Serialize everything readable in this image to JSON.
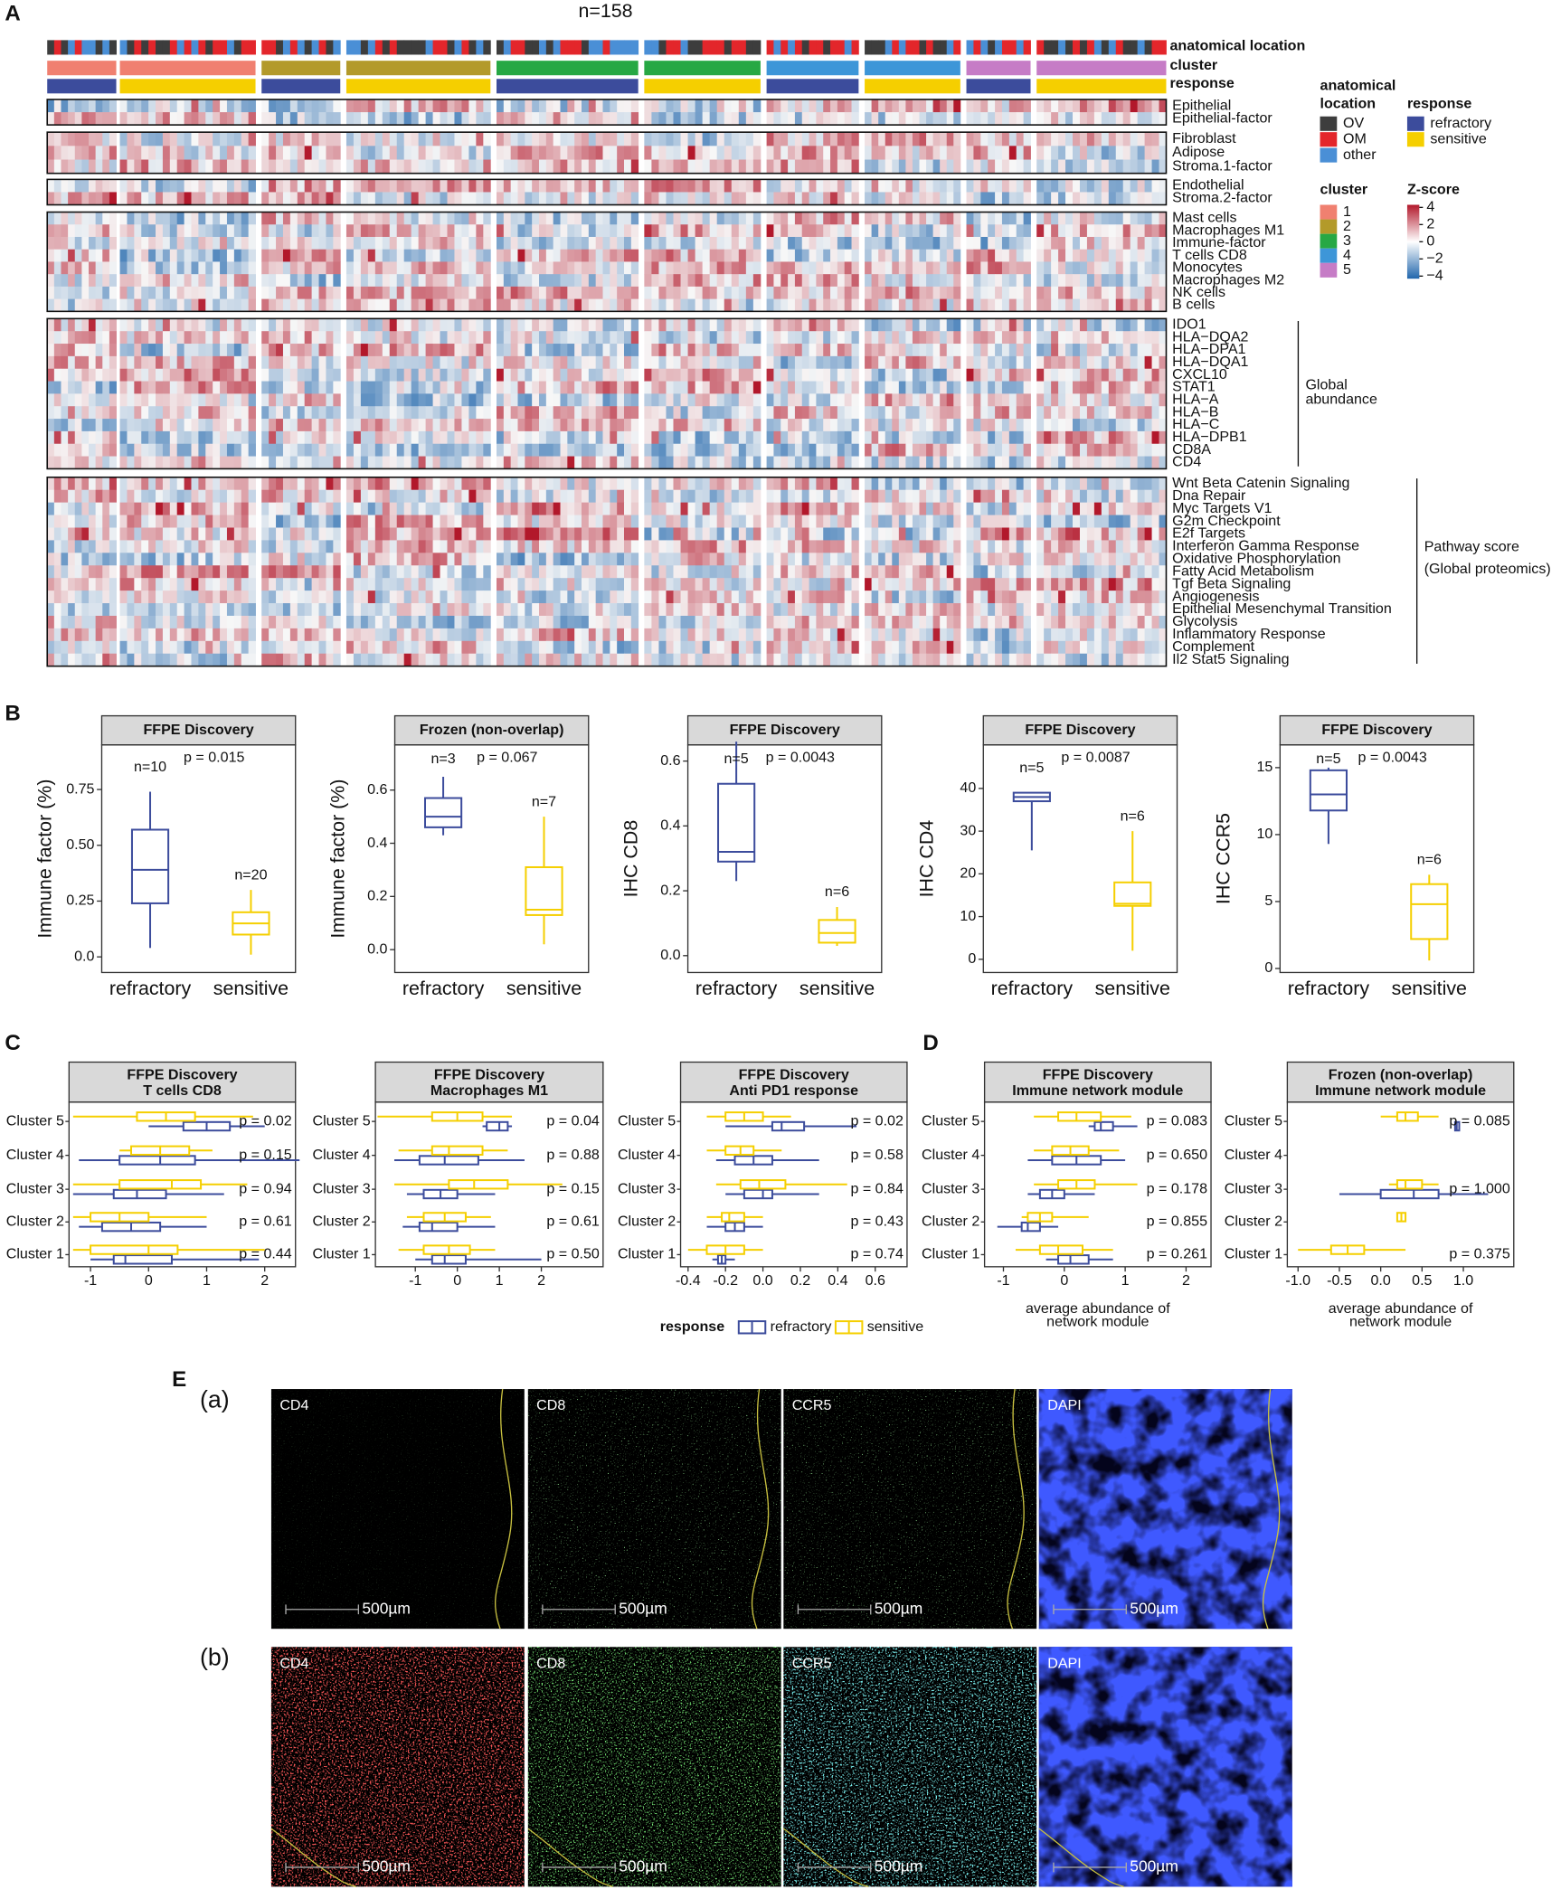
{
  "panel_labels": {
    "a": "A",
    "b": "B",
    "c": "C",
    "d": "D",
    "e": "E"
  },
  "response_colors": [
    "#3c4c9c",
    "#f5cf00"
  ],
  "heatmap": {
    "title": "n=158",
    "annotation_rows": [
      "anatomical location",
      "cluster",
      "response"
    ],
    "row_groups": [
      [
        "Epithelial",
        "Epithelial-factor"
      ],
      [
        "Fibroblast",
        "Adipose",
        "Stroma.1-factor"
      ],
      [
        "Endothelial",
        "Stroma.2-factor"
      ],
      [
        "Mast cells",
        "Macrophages M1",
        "Immune-factor",
        "T cells CD8",
        "Monocytes",
        "Macrophages M2",
        "NK cells",
        "B cells"
      ],
      [
        "IDO1",
        "HLA−DQA2",
        "HLA−DPA1",
        "HLA−DQA1",
        "CXCL10",
        "STAT1",
        "HLA−A",
        "HLA−B",
        "HLA−C",
        "HLA−DPB1",
        "CD8A",
        "CD4"
      ],
      [
        "Wnt Beta Catenin Signaling",
        "Dna Repair",
        "Myc Targets V1",
        "G2m Checkpoint",
        "E2f Targets",
        "Interferon Gamma Response",
        "Oxidative Phosphorylation",
        "Fatty Acid Metabolism",
        "Tgf Beta Signaling",
        "Angiogenesis",
        "Epithelial Mesenchymal Transition",
        "Glycolysis",
        "Inflammatory Response",
        "Complement",
        "Il2 Stat5 Signaling"
      ]
    ],
    "group_labels": [
      [
        "Global",
        "abundance"
      ],
      [
        "Pathway score",
        "(Global proteomics)"
      ]
    ]
  },
  "legend": {
    "anatomical_location": {
      "title": [
        "anatomical",
        "location"
      ],
      "items": [
        {
          "label": "OV",
          "color": "#3d3d3d"
        },
        {
          "label": "OM",
          "color": "#e3262b"
        },
        {
          "label": "other",
          "color": "#4a8fd6"
        }
      ]
    },
    "response": {
      "title": "response",
      "items": [
        {
          "label": "refractory",
          "color": "#3c4c9c"
        },
        {
          "label": "sensitive",
          "color": "#f5cf00"
        }
      ]
    },
    "cluster": {
      "title": "cluster",
      "items": [
        {
          "label": "1",
          "color": "#f08070"
        },
        {
          "label": "2",
          "color": "#b39a2a"
        },
        {
          "label": "3",
          "color": "#27a844"
        },
        {
          "label": "4",
          "color": "#3d96d8"
        },
        {
          "label": "5",
          "color": "#c67cc6"
        }
      ]
    },
    "zscore": {
      "title": "Z-score",
      "lim": [
        -4.3,
        4.3
      ],
      "ticks": [
        4,
        2,
        0,
        {
          "value": -2,
          "label": "−2"
        },
        {
          "value": -4,
          "label": "−4"
        }
      ]
    }
  },
  "panel_b": [
    {
      "strip": "FFPE Discovery",
      "ylabel": "Immune factor (%)",
      "p": "p = 0.015",
      "n": [
        "n=10",
        "n=20"
      ],
      "categories": [
        "refractory",
        "sensitive"
      ],
      "ylim": [
        -0.07,
        0.95
      ],
      "yticks": [
        {
          "value": 0,
          "label": "0.0"
        },
        {
          "value": 0.25,
          "label": "0.25"
        },
        {
          "value": 0.5,
          "label": "0.50"
        },
        {
          "value": 0.75,
          "label": "0.75"
        }
      ],
      "boxes": [
        [
          0.04,
          0.24,
          0.39,
          0.57,
          0.74
        ],
        [
          0.01,
          0.1,
          0.15,
          0.2,
          0.3
        ]
      ]
    },
    {
      "strip": "Frozen (non-overlap)",
      "ylabel": "Immune factor (%)",
      "p": "p = 0.067",
      "n": [
        "n=3",
        "n=7"
      ],
      "categories": [
        "refractory",
        "sensitive"
      ],
      "ylim": [
        -0.086,
        0.77
      ],
      "yticks": [
        {
          "value": 0,
          "label": "0.0"
        },
        0.2,
        0.4,
        0.6
      ],
      "boxes": [
        [
          0.43,
          0.46,
          0.5,
          0.57,
          0.65
        ],
        [
          0.02,
          0.13,
          0.15,
          0.31,
          0.5
        ]
      ]
    },
    {
      "strip": "FFPE Discovery",
      "ylabel": "IHC CD8",
      "p": "p = 0.0043",
      "n": [
        "n=5",
        "n=6"
      ],
      "categories": [
        "refractory",
        "sensitive"
      ],
      "ylim": [
        -0.052,
        0.65
      ],
      "yticks": [
        {
          "value": 0,
          "label": "0.0"
        },
        0.2,
        0.4,
        0.6
      ],
      "boxes": [
        [
          0.23,
          0.29,
          0.32,
          0.53,
          0.66
        ],
        [
          0.03,
          0.04,
          0.07,
          0.11,
          0.15
        ]
      ]
    },
    {
      "strip": "FFPE Discovery",
      "ylabel": "IHC CD4",
      "p": "p = 0.0087",
      "n": [
        "n=5",
        "n=6"
      ],
      "categories": [
        "refractory",
        "sensitive"
      ],
      "ylim": [
        -3.1,
        50.2
      ],
      "yticks": [
        0,
        10,
        20,
        30,
        40
      ],
      "boxes": [
        [
          25.5,
          37,
          38,
          39,
          39
        ],
        [
          2,
          12.5,
          13,
          18,
          30
        ]
      ]
    },
    {
      "strip": "FFPE Discovery",
      "ylabel": "IHC CCR5",
      "p": "p = 0.0043",
      "n": [
        "n=5",
        "n=6"
      ],
      "categories": [
        "refractory",
        "sensitive"
      ],
      "ylim": [
        -0.3,
        16.7
      ],
      "yticks": [
        0,
        5,
        10,
        15
      ],
      "boxes": [
        [
          9.3,
          11.8,
          13,
          14.8,
          15
        ],
        [
          0.6,
          2.2,
          4.8,
          6.3,
          7
        ]
      ]
    }
  ],
  "panel_cd": {
    "clusters": [
      "Cluster 5",
      "Cluster 4",
      "Cluster 3",
      "Cluster 2",
      "Cluster 1"
    ],
    "legend_title": "response",
    "legend_items": [
      "refractory",
      "sensitive"
    ],
    "plots": [
      {
        "strip": [
          "FFPE Discovery",
          "T cells CD8"
        ],
        "xlim": [
          -1.37,
          2.53
        ],
        "xticks": [
          -1,
          0,
          1,
          2
        ],
        "p": [
          "p = 0.02",
          "p = 0.15",
          "p = 0.94",
          "p = 0.61",
          "p = 0.44"
        ],
        "refractory": [
          [
            0,
            0.6,
            1,
            1.4,
            2.0
          ],
          [
            -1.2,
            -0.5,
            0.2,
            0.8,
            2.6
          ],
          [
            -1.3,
            -0.6,
            -0.2,
            0.3,
            1.3
          ],
          [
            -1.2,
            -0.8,
            -0.3,
            0.2,
            1.0
          ],
          [
            -1.0,
            -0.6,
            -0.4,
            0.4,
            1.9
          ]
        ],
        "sensitive": [
          [
            -1.3,
            -0.2,
            0.3,
            0.8,
            1.8
          ],
          [
            -0.5,
            -0.3,
            0.2,
            0.7,
            1.1
          ],
          [
            -1.3,
            -0.5,
            0.4,
            0.9,
            1.7
          ],
          [
            -1.3,
            -1.0,
            -0.5,
            0,
            1.0
          ],
          [
            -1.3,
            -1.0,
            0,
            0.5,
            2.0
          ]
        ]
      },
      {
        "strip": [
          "FFPE Discovery",
          "Macrophages M1"
        ],
        "xlim": [
          -1.95,
          3.47
        ],
        "xticks": [
          -1,
          0,
          1,
          2
        ],
        "p": [
          "p = 0.04",
          "p = 0.88",
          "p = 0.15",
          "p = 0.61",
          "p = 0.50"
        ],
        "refractory": [
          [
            0.6,
            0.7,
            1.0,
            1.2,
            1.3
          ],
          [
            -1.5,
            -0.9,
            -0.3,
            0.5,
            1.6
          ],
          [
            -1.2,
            -0.8,
            -0.4,
            0,
            0.9
          ],
          [
            -1.3,
            -0.9,
            -0.6,
            0,
            0.9
          ],
          [
            -1,
            -0.6,
            -0.3,
            0.2,
            2.0
          ]
        ],
        "sensitive": [
          [
            -1.9,
            -0.6,
            0,
            0.6,
            1.3
          ],
          [
            -1.4,
            -0.6,
            -0.2,
            0.6,
            1.2
          ],
          [
            -1.5,
            -0.2,
            0.4,
            1.2,
            2.5
          ],
          [
            -1.2,
            -0.8,
            -0.3,
            0.2,
            0.8
          ],
          [
            -1.4,
            -0.8,
            -0.2,
            0.3,
            0.9
          ]
        ]
      },
      {
        "strip": [
          "FFPE Discovery",
          "Anti PD1 response"
        ],
        "xlim": [
          -0.44,
          0.77
        ],
        "xticks": [
          -0.4,
          -0.2,
          {
            "value": 0,
            "label": "0.0"
          },
          0.2,
          0.4,
          0.6
        ],
        "p": [
          "p = 0.02",
          "p = 0.58",
          "p = 0.84",
          "p = 0.43",
          "p = 0.74"
        ],
        "refractory": [
          [
            -0.2,
            0.05,
            0.1,
            0.22,
            0.5
          ],
          [
            -0.25,
            -0.15,
            -0.05,
            0.05,
            0.3
          ],
          [
            -0.2,
            -0.1,
            0,
            0.05,
            0.3
          ],
          [
            -0.3,
            -0.2,
            -0.15,
            -0.1,
            0
          ],
          [
            -0.27,
            -0.24,
            -0.22,
            -0.2,
            -0.15
          ]
        ],
        "sensitive": [
          [
            -0.3,
            -0.2,
            -0.1,
            0,
            0.15
          ],
          [
            -0.3,
            -0.2,
            -0.12,
            -0.05,
            0.1
          ],
          [
            -0.25,
            -0.12,
            -0.02,
            0.12,
            0.45
          ],
          [
            -0.3,
            -0.22,
            -0.18,
            -0.1,
            0
          ],
          [
            -0.4,
            -0.3,
            -0.2,
            -0.1,
            0
          ]
        ]
      },
      {
        "strip": [
          "FFPE Discovery",
          "Immune network module"
        ],
        "xlabel": [
          "average abundance of",
          "network module"
        ],
        "xlim": [
          -1.31,
          2.41
        ],
        "xticks": [
          -1,
          0,
          1,
          2
        ],
        "p": [
          "p = 0.083",
          "p = 0.650",
          "p = 0.178",
          "p = 0.855",
          "p = 0.261"
        ],
        "refractory": [
          [
            0.4,
            0.5,
            0.6,
            0.8,
            1.2
          ],
          [
            -0.6,
            -0.2,
            0.2,
            0.6,
            1.0
          ],
          [
            -0.6,
            -0.4,
            -0.2,
            0,
            0.5
          ],
          [
            -1.1,
            -0.7,
            -0.6,
            -0.4,
            -0.1
          ],
          [
            -0.3,
            -0.1,
            0.1,
            0.4,
            0.8
          ]
        ],
        "sensitive": [
          [
            -0.5,
            -0.1,
            0.2,
            0.6,
            1.1
          ],
          [
            -0.5,
            -0.2,
            0.1,
            0.4,
            0.9
          ],
          [
            -0.5,
            -0.1,
            0.2,
            0.5,
            1.2
          ],
          [
            -0.7,
            -0.6,
            -0.4,
            -0.2,
            0.4
          ],
          [
            -0.8,
            -0.4,
            -0.1,
            0.3,
            0.8
          ]
        ]
      },
      {
        "strip": [
          "Frozen (non-overlap)",
          "Immune network module"
        ],
        "xlabel": [
          "average abundance of",
          "network module"
        ],
        "xlim": [
          -1.13,
          1.61
        ],
        "xticks": [
          {
            "value": -1,
            "label": "-1.0"
          },
          -0.5,
          {
            "value": 0,
            "label": "0.0"
          },
          0.5,
          {
            "value": 1,
            "label": "1.0"
          }
        ],
        "p": [
          "p = 0.085",
          null,
          "p = 1.000",
          null,
          "p = 0.375"
        ],
        "refractory": [
          [
            0.9,
            0.9,
            0.92,
            0.95,
            0.95
          ],
          null,
          [
            -0.5,
            0,
            0.4,
            0.7,
            1.3
          ],
          null,
          null
        ],
        "sensitive": [
          [
            0,
            0.2,
            0.3,
            0.45,
            0.7
          ],
          null,
          [
            0.1,
            0.2,
            0.3,
            0.5,
            0.7
          ],
          [
            0.2,
            0.2,
            0.25,
            0.3,
            0.3
          ],
          [
            -1.0,
            -0.6,
            -0.4,
            -0.2,
            0.3
          ]
        ]
      }
    ]
  },
  "panel_e": {
    "rows": [
      "(a)",
      "(b)"
    ],
    "channels": [
      "CD4",
      "CD8",
      "CCR5",
      "DAPI"
    ],
    "scale": "500µm"
  }
}
